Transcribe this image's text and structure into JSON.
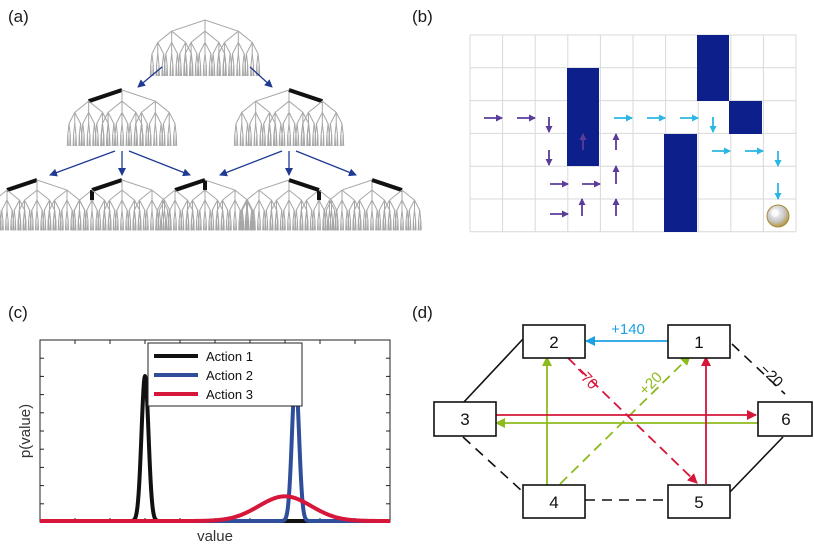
{
  "panels": {
    "a": {
      "label": "(a)"
    },
    "b": {
      "label": "(b)"
    },
    "c": {
      "label": "(c)"
    },
    "d": {
      "label": "(d)"
    }
  },
  "colors": {
    "tree_gray": "#a6a6a6",
    "arrow_navy": "#1f3a93",
    "grid_line": "#d9d9d9",
    "wall_navy": "#0d1f8a",
    "arrow_purple": "#5b3c98",
    "arrow_cyan": "#2ab7e3",
    "edge_blue": "#1ba1e2",
    "edge_red": "#d6163a",
    "edge_green": "#8dbb1e"
  },
  "chart_data": {
    "type": "line",
    "xlabel": "value",
    "ylabel": "p(value)",
    "series": [
      {
        "name": "Action 1",
        "color": "#111111",
        "mean": 0.3,
        "sd": 0.01,
        "peak": 1.0
      },
      {
        "name": "Action 2",
        "color": "#2f4f9b",
        "mean": 0.73,
        "sd": 0.01,
        "peak": 1.0
      },
      {
        "name": "Action 3",
        "color": "#d6163a",
        "mean": 0.7,
        "sd": 0.075,
        "peak": 0.17
      }
    ]
  },
  "graph": {
    "nodes": [
      {
        "id": "1",
        "label": "1"
      },
      {
        "id": "2",
        "label": "2"
      },
      {
        "id": "3",
        "label": "3"
      },
      {
        "id": "4",
        "label": "4"
      },
      {
        "id": "5",
        "label": "5"
      },
      {
        "id": "6",
        "label": "6"
      }
    ],
    "edge_labels": {
      "e12": "+140",
      "e25": "−70",
      "e41": "+20",
      "e16": "−20"
    }
  }
}
